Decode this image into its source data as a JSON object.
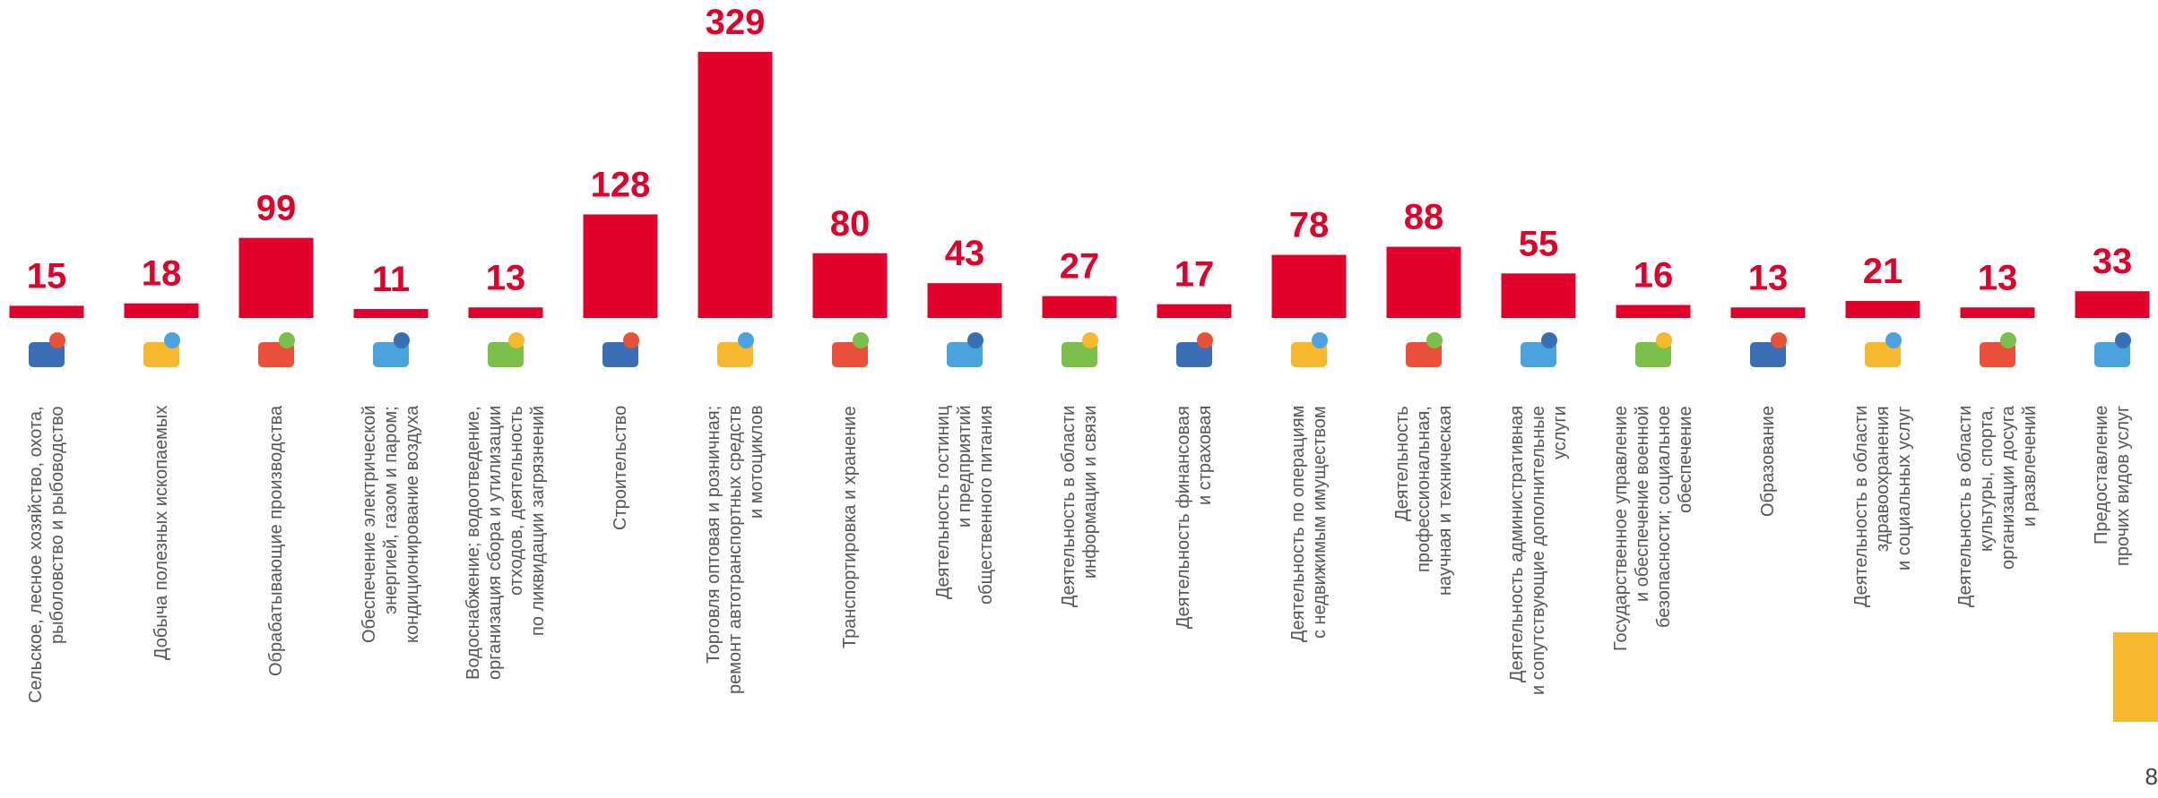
{
  "chart_data": {
    "type": "bar",
    "color": "#e0002a",
    "categories": [
      "Сельское, лесное хозяйство, охота,\nрыболовство и рыбоводство",
      "Добыча полезных ископаемых",
      "Обрабатывающие производства",
      "Обеспечение электрической\nэнергией, газом и паром;\nкондиционирование воздуха",
      "Водоснабжение; водоотведение,\nорганизация сбора и утилизации\nотходов, деятельность\nпо ликвидации загрязнений",
      "Строительство",
      "Торговля оптовая и розничная;\nремонт автотранспортных средств\nи мотоциклов",
      "Транспортировка и хранение",
      "Деятельность гостиниц\nи предприятий\nобщественного питания",
      "Деятельность в области\nинформации и связи",
      "Деятельность финансовая\nи страховая",
      "Деятельность по операциям\nс недвижимым имуществом",
      "Деятельность\nпрофессиональная,\nнаучная и техническая",
      "Деятельность административная\nи сопутствующие дополнительные\nуслуги",
      "Государственное управление\nи обеспечение военной\nбезопасности; социальное\nобеспечение",
      "Образование",
      "Деятельность в области\nздравоохранения\nи социальных услуг",
      "Деятельность в области\nкультуры, спорта,\nорганизации досуга\nи развлечений",
      "Предоставление\nпрочих видов услуг"
    ],
    "values": [
      15,
      18,
      99,
      11,
      13,
      128,
      329,
      80,
      43,
      27,
      17,
      78,
      88,
      55,
      16,
      13,
      21,
      13,
      33
    ]
  },
  "page_number": "8"
}
